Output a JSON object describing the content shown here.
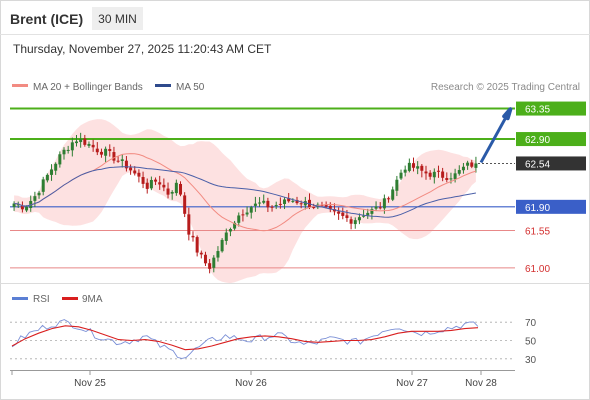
{
  "header": {
    "instrument": "Brent (ICE)",
    "timeframe": "30 MIN",
    "timestamp": "Thursday, November 27, 2025 11:20:43 AM CET"
  },
  "legend": {
    "ma20_label": "MA 20 + Bollinger Bands",
    "ma50_label": "MA 50",
    "rsi_label": "RSI",
    "ma9_label": "9MA",
    "credit": "Research © 2025 Trading Central"
  },
  "colors": {
    "bull": "#2e7d32",
    "bear": "#b71c1c",
    "ma20": "#f28b82",
    "ma50": "#4a5fa8",
    "band": "#fddcdc",
    "resistance": "#4caf1a",
    "support_blue": "#3a5fc8",
    "support_red": "#e88888",
    "price_tag": "#333333",
    "arrow": "#2a5aa8",
    "rsi": "#7a8fd6",
    "rsi_ma": "#d91f1f"
  },
  "chart_data": [
    {
      "type": "candlestick",
      "title": "Brent (ICE)",
      "x_ticks": [
        "Nov 25",
        "Nov 26",
        "Nov 27",
        "Nov 28"
      ],
      "ylim": [
        60.85,
        63.55
      ],
      "levels": [
        {
          "name": "resistance-2",
          "value": 63.35,
          "label": "63.35",
          "kind": "resistance"
        },
        {
          "name": "resistance-1",
          "value": 62.9,
          "label": "62.90",
          "kind": "resistance"
        },
        {
          "name": "last-price",
          "value": 62.54,
          "label": "62.54",
          "kind": "price"
        },
        {
          "name": "support-1",
          "value": 61.9,
          "label": "61.90",
          "kind": "support_blue"
        },
        {
          "name": "support-2",
          "value": 61.55,
          "label": "61.55",
          "kind": "support_red"
        },
        {
          "name": "support-3",
          "value": 61.0,
          "label": "61.00",
          "kind": "support_red"
        }
      ],
      "close_path": [
        61.95,
        61.9,
        62.05,
        62.3,
        62.55,
        62.75,
        62.9,
        62.85,
        62.75,
        62.7,
        62.6,
        62.5,
        62.35,
        62.2,
        62.3,
        62.1,
        62.25,
        61.55,
        61.2,
        61.0,
        61.3,
        61.6,
        61.8,
        61.9,
        61.95,
        61.9,
        61.95,
        62.0,
        61.97,
        61.93,
        61.88,
        61.8,
        61.75,
        61.7,
        61.8,
        61.85,
        61.95,
        62.2,
        62.5,
        62.48,
        62.4,
        62.38,
        62.35,
        62.37,
        62.5,
        62.54
      ]
    },
    {
      "type": "line",
      "title": "RSI",
      "ylim": [
        20,
        80
      ],
      "y_ticks": [
        70,
        50,
        30
      ],
      "series": [
        {
          "name": "RSI",
          "values": [
            45,
            55,
            62,
            68,
            70,
            66,
            58,
            52,
            48,
            50,
            55,
            45,
            38,
            32,
            42,
            50,
            55,
            52,
            50,
            54,
            56,
            50,
            45,
            48,
            52,
            50,
            48,
            55,
            62,
            66,
            60,
            58,
            62,
            64,
            68,
            66
          ]
        },
        {
          "name": "9MA",
          "values": [
            44,
            52,
            58,
            63,
            66,
            65,
            61,
            56,
            51,
            50,
            51,
            49,
            45,
            40,
            41,
            44,
            48,
            52,
            54,
            55,
            54,
            52,
            49,
            48,
            49,
            50,
            50,
            51,
            54,
            58,
            60,
            60,
            60,
            61,
            63,
            64
          ]
        }
      ]
    }
  ]
}
